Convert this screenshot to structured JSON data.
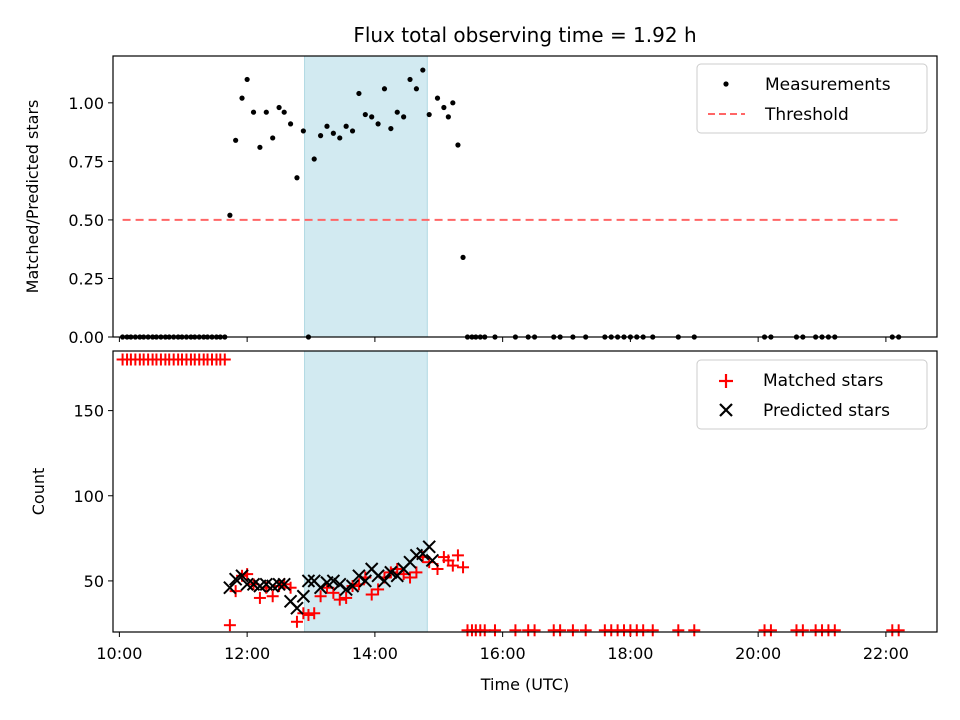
{
  "chart_data": [
    {
      "type": "scatter",
      "title": "Flux total observing time = 1.92 h",
      "xlabel": "",
      "ylabel": "Matched/Predicted stars",
      "xlim": [
        9.9,
        22.8
      ],
      "ylim": [
        0,
        1.2
      ],
      "yticks": [
        "0.00",
        "0.25",
        "0.50",
        "0.75",
        "1.00"
      ],
      "ytick_values": [
        0,
        0.25,
        0.5,
        0.75,
        1.0
      ],
      "shaded_interval": [
        12.9,
        14.82
      ],
      "shaded_color": "#add8e6",
      "legend_position": "upper right",
      "series": [
        {
          "name": "Measurements",
          "style": "dot",
          "color": "#000000",
          "x": [
            10.05,
            10.12,
            10.18,
            10.25,
            10.32,
            10.38,
            10.45,
            10.52,
            10.58,
            10.65,
            10.72,
            10.78,
            10.85,
            10.92,
            10.98,
            11.05,
            11.12,
            11.18,
            11.25,
            11.32,
            11.38,
            11.45,
            11.52,
            11.58,
            11.65,
            11.73,
            11.82,
            11.92,
            12.0,
            12.1,
            12.2,
            12.3,
            12.4,
            12.5,
            12.58,
            12.68,
            12.78,
            12.88,
            12.96,
            13.05,
            13.15,
            13.25,
            13.35,
            13.45,
            13.55,
            13.65,
            13.75,
            13.85,
            13.95,
            14.05,
            14.15,
            14.25,
            14.35,
            14.45,
            14.55,
            14.65,
            14.75,
            14.85,
            14.98,
            15.08,
            15.15,
            15.22,
            15.3,
            15.38,
            15.45,
            15.52,
            15.58,
            15.65,
            15.72,
            15.88,
            16.2,
            16.4,
            16.5,
            16.8,
            16.9,
            17.1,
            17.3,
            17.6,
            17.7,
            17.8,
            17.9,
            18.0,
            18.1,
            18.2,
            18.35,
            18.75,
            19.0,
            20.1,
            20.2,
            20.6,
            20.7,
            20.9,
            21.0,
            21.1,
            21.2,
            22.1,
            22.2
          ],
          "y": [
            0,
            0,
            0,
            0,
            0,
            0,
            0,
            0,
            0,
            0,
            0,
            0,
            0,
            0,
            0,
            0,
            0,
            0,
            0,
            0,
            0,
            0,
            0,
            0,
            0,
            0.52,
            0.84,
            1.02,
            1.1,
            0.96,
            0.81,
            0.96,
            0.85,
            0.98,
            0.96,
            0.91,
            0.68,
            0.88,
            0,
            0.76,
            0.86,
            0.9,
            0.87,
            0.85,
            0.9,
            0.88,
            1.04,
            0.95,
            0.94,
            0.91,
            1.06,
            0.89,
            0.96,
            0.94,
            1.1,
            1.06,
            1.14,
            0.95,
            1.02,
            0.98,
            0.94,
            1.0,
            0.82,
            0.34,
            0,
            0,
            0,
            0,
            0,
            0,
            0,
            0,
            0,
            0,
            0,
            0,
            0,
            0,
            0,
            0,
            0,
            0,
            0,
            0,
            0,
            0,
            0,
            0,
            0,
            0,
            0,
            0,
            0,
            0,
            0,
            0,
            0
          ]
        },
        {
          "name": "Threshold",
          "style": "dashed-line",
          "color": "#ff6666",
          "x": [
            10.05,
            22.2
          ],
          "y": [
            0.5,
            0.5
          ]
        }
      ]
    },
    {
      "type": "scatter",
      "title": "",
      "xlabel": "Time (UTC)",
      "ylabel": "Count",
      "xlim": [
        9.9,
        22.8
      ],
      "ylim": [
        20,
        185
      ],
      "yticks": [
        "50",
        "100",
        "150"
      ],
      "ytick_values": [
        50,
        100,
        150
      ],
      "xticks": [
        "10:00",
        "12:00",
        "14:00",
        "16:00",
        "18:00",
        "20:00",
        "22:00"
      ],
      "xtick_values": [
        10,
        12,
        14,
        16,
        18,
        20,
        22
      ],
      "shaded_interval": [
        12.9,
        14.82
      ],
      "shaded_color": "#add8e6",
      "legend_position": "upper right",
      "series": [
        {
          "name": "Matched stars",
          "style": "plus",
          "color": "#ff0000",
          "x": [
            10.05,
            10.12,
            10.18,
            10.25,
            10.32,
            10.38,
            10.45,
            10.52,
            10.58,
            10.65,
            10.72,
            10.78,
            10.85,
            10.92,
            10.98,
            11.05,
            11.12,
            11.18,
            11.25,
            11.32,
            11.38,
            11.45,
            11.52,
            11.58,
            11.65,
            11.73,
            11.82,
            11.92,
            12.0,
            12.1,
            12.2,
            12.3,
            12.4,
            12.5,
            12.58,
            12.68,
            12.78,
            12.88,
            12.96,
            13.05,
            13.15,
            13.25,
            13.35,
            13.45,
            13.55,
            13.65,
            13.75,
            13.85,
            13.95,
            14.05,
            14.15,
            14.25,
            14.35,
            14.45,
            14.55,
            14.65,
            14.75,
            14.85,
            14.98,
            15.08,
            15.15,
            15.22,
            15.3,
            15.38,
            15.45,
            15.52,
            15.58,
            15.65,
            15.72,
            15.88,
            16.2,
            16.4,
            16.5,
            16.8,
            16.9,
            17.1,
            17.3,
            17.6,
            17.7,
            17.8,
            17.9,
            18.0,
            18.1,
            18.2,
            18.35,
            18.75,
            19.0,
            20.1,
            20.2,
            20.6,
            20.7,
            20.9,
            21.0,
            21.1,
            21.2,
            22.1,
            22.2
          ],
          "y": [
            180,
            180,
            180,
            180,
            180,
            180,
            180,
            180,
            180,
            180,
            180,
            180,
            180,
            180,
            180,
            180,
            180,
            180,
            180,
            180,
            180,
            180,
            180,
            180,
            180,
            24,
            44,
            53,
            54,
            48,
            40,
            46,
            41,
            47,
            48,
            46,
            26,
            31,
            30,
            31,
            41,
            46,
            43,
            39,
            40,
            47,
            48,
            52,
            42,
            45,
            52,
            55,
            57,
            54,
            52,
            55,
            64,
            61,
            57,
            64,
            62,
            59,
            65,
            58,
            21,
            21,
            21,
            21,
            21,
            21,
            21,
            21,
            21,
            21,
            21,
            21,
            21,
            21,
            21,
            21,
            21,
            21,
            21,
            21,
            21,
            21,
            21,
            21,
            21,
            21,
            21,
            21,
            21,
            21,
            21,
            21,
            21
          ],
          "note": "bands correspond to time points; sampled from plotted markers"
        },
        {
          "name": "Predicted stars",
          "style": "x",
          "color": "#000000",
          "x": [
            11.73,
            11.82,
            11.92,
            12.0,
            12.1,
            12.2,
            12.3,
            12.4,
            12.5,
            12.58,
            12.68,
            12.78,
            12.88,
            12.96,
            13.05,
            13.15,
            13.25,
            13.35,
            13.45,
            13.55,
            13.65,
            13.75,
            13.85,
            13.95,
            14.05,
            14.15,
            14.25,
            14.35,
            14.45,
            14.55,
            14.65,
            14.75,
            14.85,
            14.9
          ],
          "y": [
            46,
            51,
            53,
            48,
            48,
            47,
            48,
            47,
            48,
            48,
            38,
            34,
            41,
            50,
            50,
            46,
            49,
            50,
            48,
            45,
            47,
            53,
            50,
            57,
            53,
            50,
            55,
            53,
            57,
            61,
            65,
            66,
            70,
            62
          ]
        }
      ]
    }
  ]
}
